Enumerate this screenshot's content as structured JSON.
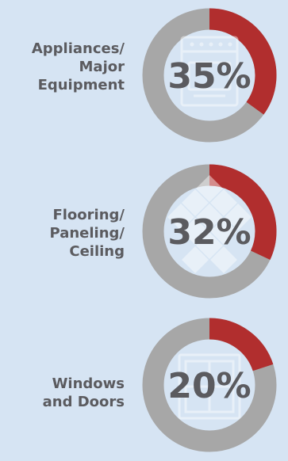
{
  "chart_data": [
    {
      "type": "pie",
      "style": "donut",
      "label_lines": [
        "Appliances/",
        "Major",
        "Equipment"
      ],
      "value_text": "35%",
      "value": 35,
      "icon": "oven-icon"
    },
    {
      "type": "pie",
      "style": "donut",
      "label_lines": [
        "Flooring/",
        "Paneling/",
        "Ceiling"
      ],
      "value_text": "32%",
      "value": 32,
      "icon": "floor-tiles-icon"
    },
    {
      "type": "pie",
      "style": "donut",
      "label_lines": [
        "Windows",
        "and Doors"
      ],
      "value_text": "20%",
      "value": 20,
      "icon": "window-icon"
    }
  ],
  "colors": {
    "background": "#d6e4f3",
    "highlight": "#b12e2e",
    "remainder": "#a7a7a7",
    "text": "#5b5b5f",
    "icon": "#ffffff"
  }
}
